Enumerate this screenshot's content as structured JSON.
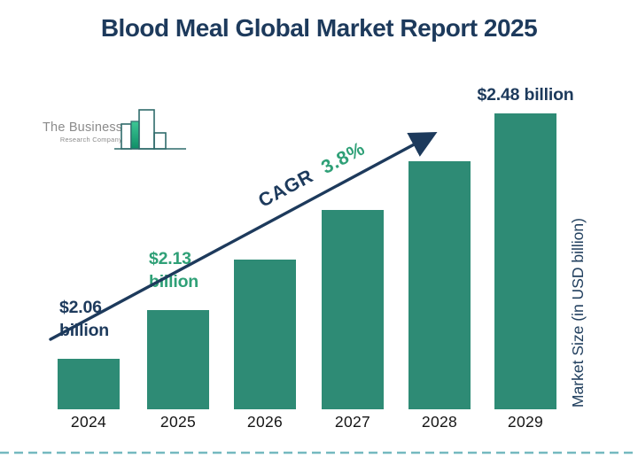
{
  "title": "Blood Meal Global Market Report 2025",
  "logo": {
    "line1": "The Business",
    "line2": "Research Company"
  },
  "annotation": {
    "cagr_label": "CAGR",
    "cagr_value": "3.8%"
  },
  "colors": {
    "bar": "#2E8B75",
    "navy": "#1D3A5C",
    "green": "#2FA077",
    "dashed_line": "#74B9BF",
    "year_text": "#151515",
    "logo_text": "#8B8B8B",
    "logo_outline": "#2F6B6B",
    "logo_fill_top": "#3EC795",
    "logo_fill_bottom": "#0F8E67"
  },
  "chart_data": {
    "type": "bar",
    "title": "Blood Meal Global Market Report 2025",
    "categories": [
      "2024",
      "2025",
      "2026",
      "2027",
      "2028",
      "2029"
    ],
    "values": [
      2.06,
      2.13,
      2.21,
      2.29,
      2.38,
      2.48
    ],
    "unit": "USD billion",
    "ylabel": "Market Size (in USD billion)",
    "xlabel": "",
    "cagr": "3.8%",
    "legend": false,
    "grid": false,
    "bar_color": "#2E8B75",
    "axis_note": "y-axis truncated; bar heights not drawn proportional from zero",
    "value_labels": [
      {
        "lines": [
          "$2.06",
          "billion"
        ],
        "color": "navy"
      },
      {
        "lines": [
          "$2.13",
          "billion"
        ],
        "color": "green"
      },
      null,
      null,
      null,
      {
        "lines": [
          "$2.48 billion"
        ],
        "color": "navy"
      }
    ]
  }
}
